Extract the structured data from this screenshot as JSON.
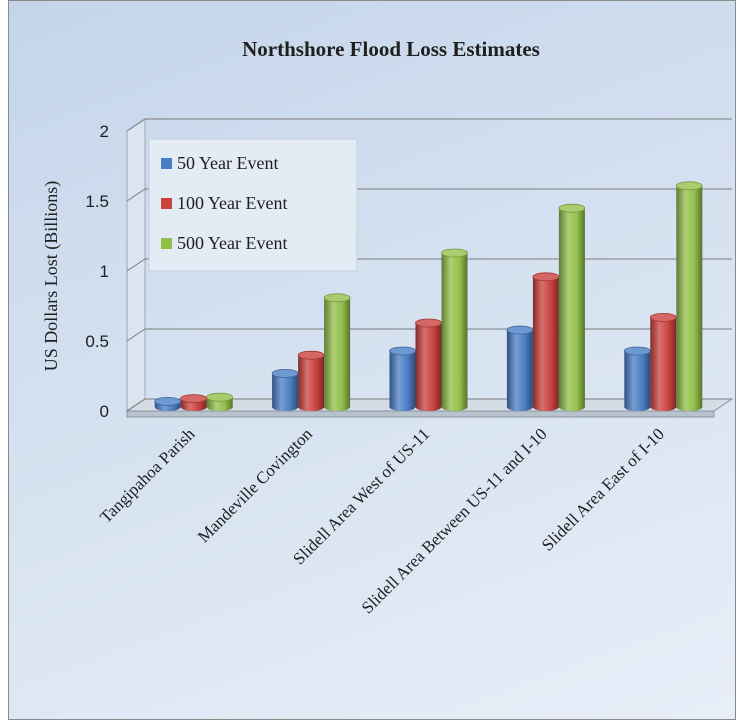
{
  "chart_data": {
    "type": "bar",
    "title": "Northshore Flood Loss Estimates",
    "xlabel": "",
    "ylabel": "US Dollars Lost (Billions)",
    "ylim": [
      0,
      2
    ],
    "yticks": [
      "0",
      "0.5",
      "1",
      "1.5",
      "2"
    ],
    "categories": [
      "Tangipahoa Parish",
      "Mandeville Covington",
      "Slidell Area West of US-11",
      "Slidell Area Between US-11 and I-10",
      "Slidell Area East of I-10"
    ],
    "series": [
      {
        "name": "50 Year Event",
        "values": [
          0.04,
          0.24,
          0.4,
          0.55,
          0.4
        ],
        "color": "#4a7ec4"
      },
      {
        "name": "100 Year Event",
        "values": [
          0.06,
          0.37,
          0.6,
          0.93,
          0.64
        ],
        "color": "#c9423d"
      },
      {
        "name": "500 Year Event",
        "values": [
          0.07,
          0.78,
          1.1,
          1.42,
          1.58
        ],
        "color": "#92bf4a"
      }
    ],
    "grid": true,
    "legend_position": "top-left",
    "style": "3d-cylinder"
  }
}
